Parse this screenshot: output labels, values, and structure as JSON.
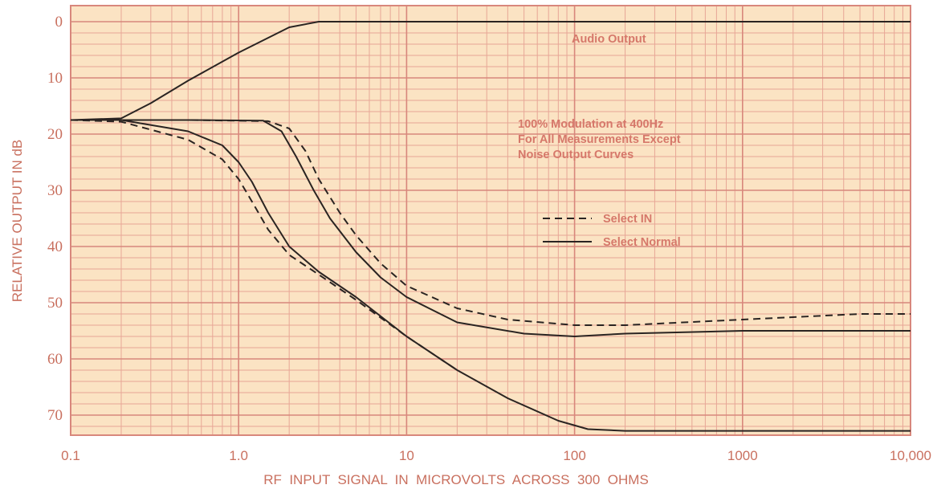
{
  "chart_data": {
    "type": "line",
    "xlabel": "RF  INPUT  SIGNAL  IN  MICROVOLTS  ACROSS  300  OHMS",
    "ylabel": "RELATIVE OUTPUT IN dB",
    "xscale": "log",
    "xlim": [
      0.1,
      10000
    ],
    "ylim": [
      0,
      73
    ],
    "y_inverted": true,
    "grid": true,
    "x_tick_labels": [
      "0.1",
      "1.0",
      "10",
      "100",
      "1000",
      "10,000"
    ],
    "x_tick_values": [
      0.1,
      1,
      10,
      100,
      1000,
      10000
    ],
    "y_tick_labels": [
      "0",
      "10",
      "20",
      "30",
      "40",
      "50",
      "60",
      "70"
    ],
    "y_tick_values": [
      0,
      10,
      20,
      30,
      40,
      50,
      60,
      70
    ],
    "annotations": [
      {
        "text": "Audio Output"
      },
      {
        "text": "100% Modulation at 400Hz"
      },
      {
        "text": "For All Measurements Except"
      },
      {
        "text": "Noise Output Curves"
      }
    ],
    "legend": {
      "placement": "center-right",
      "entries": [
        {
          "label": "Select IN",
          "style": "dashed"
        },
        {
          "label": "Select Normal",
          "style": "solid"
        }
      ]
    },
    "series": [
      {
        "style": "solid",
        "points": [
          [
            0.1,
            17.5
          ],
          [
            0.2,
            17.2
          ],
          [
            0.3,
            14.5
          ],
          [
            0.5,
            10.5
          ],
          [
            1,
            5.5
          ],
          [
            2,
            1
          ],
          [
            3,
            0
          ],
          [
            10,
            0
          ],
          [
            100,
            0
          ],
          [
            1000,
            0
          ],
          [
            10000,
            0
          ]
        ]
      },
      {
        "style": "dashed",
        "points": [
          [
            0.1,
            17.5
          ],
          [
            0.5,
            17.5
          ],
          [
            1.5,
            17.7
          ],
          [
            2,
            19
          ],
          [
            2.5,
            23
          ],
          [
            3,
            28
          ],
          [
            4,
            34
          ],
          [
            5,
            38
          ],
          [
            7,
            43
          ],
          [
            10,
            47
          ],
          [
            20,
            51
          ],
          [
            40,
            53
          ],
          [
            100,
            54
          ],
          [
            200,
            54
          ],
          [
            1000,
            53
          ],
          [
            5000,
            52
          ],
          [
            10000,
            52
          ]
        ]
      },
      {
        "style": "solid",
        "points": [
          [
            0.1,
            17.5
          ],
          [
            0.5,
            17.5
          ],
          [
            1.4,
            17.6
          ],
          [
            1.8,
            19.5
          ],
          [
            2.2,
            24
          ],
          [
            2.8,
            30
          ],
          [
            3.5,
            35
          ],
          [
            5,
            41
          ],
          [
            7,
            45.5
          ],
          [
            10,
            49
          ],
          [
            20,
            53.5
          ],
          [
            50,
            55.5
          ],
          [
            100,
            56
          ],
          [
            200,
            55.5
          ],
          [
            1000,
            55
          ],
          [
            5000,
            55
          ],
          [
            10000,
            55
          ]
        ]
      },
      {
        "style": "solid",
        "points": [
          [
            0.1,
            17.5
          ],
          [
            0.2,
            17.5
          ],
          [
            0.5,
            19.5
          ],
          [
            0.8,
            22
          ],
          [
            1,
            25
          ],
          [
            1.2,
            28.5
          ],
          [
            1.5,
            34
          ],
          [
            2,
            40
          ],
          [
            3,
            44.5
          ],
          [
            5,
            49
          ],
          [
            10,
            56
          ],
          [
            20,
            62
          ],
          [
            40,
            67
          ],
          [
            80,
            71
          ],
          [
            120,
            72.5
          ],
          [
            200,
            72.8
          ],
          [
            1000,
            72.8
          ],
          [
            10000,
            72.8
          ]
        ]
      },
      {
        "style": "dashed",
        "points": [
          [
            0.1,
            17.5
          ],
          [
            0.2,
            17.8
          ],
          [
            0.5,
            21
          ],
          [
            0.8,
            24.5
          ],
          [
            1,
            28
          ],
          [
            1.2,
            32
          ],
          [
            1.5,
            37
          ],
          [
            2,
            41.5
          ],
          [
            3,
            45
          ],
          [
            5,
            49.5
          ],
          [
            10,
            56
          ],
          [
            20,
            62
          ]
        ]
      }
    ]
  }
}
